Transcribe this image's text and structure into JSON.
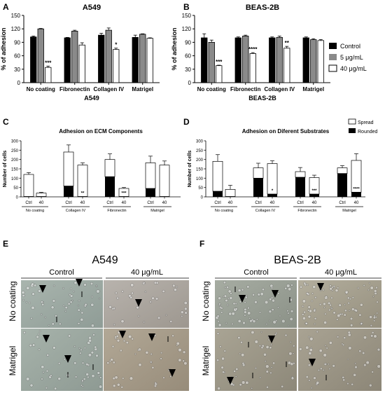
{
  "panel_letters": {
    "A": "A",
    "B": "B",
    "C": "C",
    "D": "D",
    "E": "E",
    "F": "F"
  },
  "legend_ab": {
    "items": [
      {
        "label": "Control",
        "color": "#000000"
      },
      {
        "label": "5 μg/mL",
        "color": "#8a8a8a"
      },
      {
        "label": "40 μg/mL",
        "color": "#ffffff"
      }
    ]
  },
  "legend_cd": {
    "items": [
      {
        "label": "Spread",
        "color": "#ffffff"
      },
      {
        "label": "Rounded",
        "color": "#000000"
      }
    ]
  },
  "photos": {
    "E": {
      "title": "A549",
      "col_control": "Control",
      "col_treated": "40 μg/mL",
      "row_top": "No coating",
      "row_bottom": "Matrigel"
    },
    "F": {
      "title": "BEAS-2B",
      "col_control": "Control",
      "col_treated": "40 μg/mL",
      "row_top": "No coating",
      "row_bottom": "Matrigel"
    }
  },
  "chart_data": [
    {
      "id": "A",
      "type": "bar",
      "title": "A549",
      "xlabel": "A549",
      "ylabel": "% of adhesion",
      "ylim": [
        0,
        150
      ],
      "yticks": [
        0,
        30,
        60,
        90,
        120,
        150
      ],
      "categories": [
        "No coating",
        "Fibronectin",
        "Collagen IV",
        "Matrigel"
      ],
      "series": [
        {
          "name": "Control",
          "values": [
            102,
            100,
            106,
            101
          ],
          "errors": [
            2,
            1,
            4,
            5
          ]
        },
        {
          "name": "5 μg/mL",
          "values": [
            120,
            115,
            117,
            108
          ],
          "errors": [
            1,
            2,
            5,
            1
          ]
        },
        {
          "name": "40 μg/mL",
          "values": [
            34,
            84,
            74,
            99
          ],
          "errors": [
            3,
            5,
            3,
            1
          ]
        }
      ],
      "significance": [
        {
          "category": "No coating",
          "series": "40 μg/mL",
          "label": "***"
        },
        {
          "category": "Collagen IV",
          "series": "40 μg/mL",
          "label": "*"
        }
      ]
    },
    {
      "id": "B",
      "type": "bar",
      "title": "BEAS-2B",
      "xlabel": "BEAS-2B",
      "ylabel": "% of adhesion",
      "ylim": [
        0,
        150
      ],
      "yticks": [
        0,
        30,
        60,
        90,
        120,
        150
      ],
      "categories": [
        "No coating",
        "Fibronectin",
        "Collagen IV",
        "Matrigel"
      ],
      "series": [
        {
          "name": "Control",
          "values": [
            100,
            100,
            100,
            100
          ],
          "errors": [
            9,
            2,
            2,
            2
          ]
        },
        {
          "name": "5 μg/mL",
          "values": [
            90,
            104,
            101,
            96
          ],
          "errors": [
            5,
            2,
            3,
            2
          ]
        },
        {
          "name": "40 μg/mL",
          "values": [
            38,
            65,
            77,
            94
          ],
          "errors": [
            1,
            2,
            4,
            2
          ]
        }
      ],
      "significance": [
        {
          "category": "No coating",
          "series": "40 μg/mL",
          "label": "***"
        },
        {
          "category": "Fibronectin",
          "series": "40 μg/mL",
          "label": "****"
        },
        {
          "category": "Collagen IV",
          "series": "40 μg/mL",
          "label": "**"
        }
      ]
    },
    {
      "id": "C",
      "type": "bar",
      "title": "Adhesion on ECM Components",
      "ylabel": "Number of cells",
      "ylim": [
        0,
        300
      ],
      "yticks": [
        0,
        50,
        100,
        150,
        200,
        250,
        300
      ],
      "groups": [
        "No coating",
        "Collagen IV",
        "Fibronectin",
        "Matrigel"
      ],
      "categories": [
        "Ctrl",
        "40",
        "Ctrl",
        "40",
        "Ctrl",
        "40",
        "Ctrl",
        "40"
      ],
      "series": [
        {
          "name": "Rounded",
          "values": [
            2,
            2,
            58,
            2,
            108,
            2,
            45,
            2
          ]
        },
        {
          "name": "Spread",
          "values": [
            118,
            18,
            182,
            168,
            92,
            43,
            137,
            168
          ]
        }
      ],
      "errors": [
        10,
        4,
        38,
        12,
        30,
        5,
        36,
        22
      ],
      "significance": [
        {
          "index": 3,
          "label": "**"
        },
        {
          "index": 5,
          "label": "***"
        }
      ]
    },
    {
      "id": "D",
      "type": "bar",
      "title": "Adhesion on Diferent Substrates",
      "ylabel": "Number of cells",
      "ylim": [
        0,
        300
      ],
      "yticks": [
        0,
        50,
        100,
        150,
        200,
        250,
        300
      ],
      "groups": [
        "No coating",
        "Collagen IV",
        "Fibronectin",
        "Matrigel"
      ],
      "categories": [
        "Ctrl",
        "40",
        "Ctrl",
        "40",
        "Ctrl",
        "40",
        "Ctrl",
        "40"
      ],
      "series": [
        {
          "name": "Rounded",
          "values": [
            30,
            2,
            100,
            15,
            105,
            15,
            125,
            25
          ]
        },
        {
          "name": "Spread",
          "values": [
            160,
            38,
            55,
            163,
            30,
            88,
            30,
            170
          ]
        }
      ],
      "errors": [
        36,
        22,
        25,
        15,
        22,
        13,
        12,
        36
      ],
      "significance": [
        {
          "index": 3,
          "label": "*"
        },
        {
          "index": 5,
          "label": "***"
        },
        {
          "index": 7,
          "label": "****"
        }
      ]
    }
  ]
}
